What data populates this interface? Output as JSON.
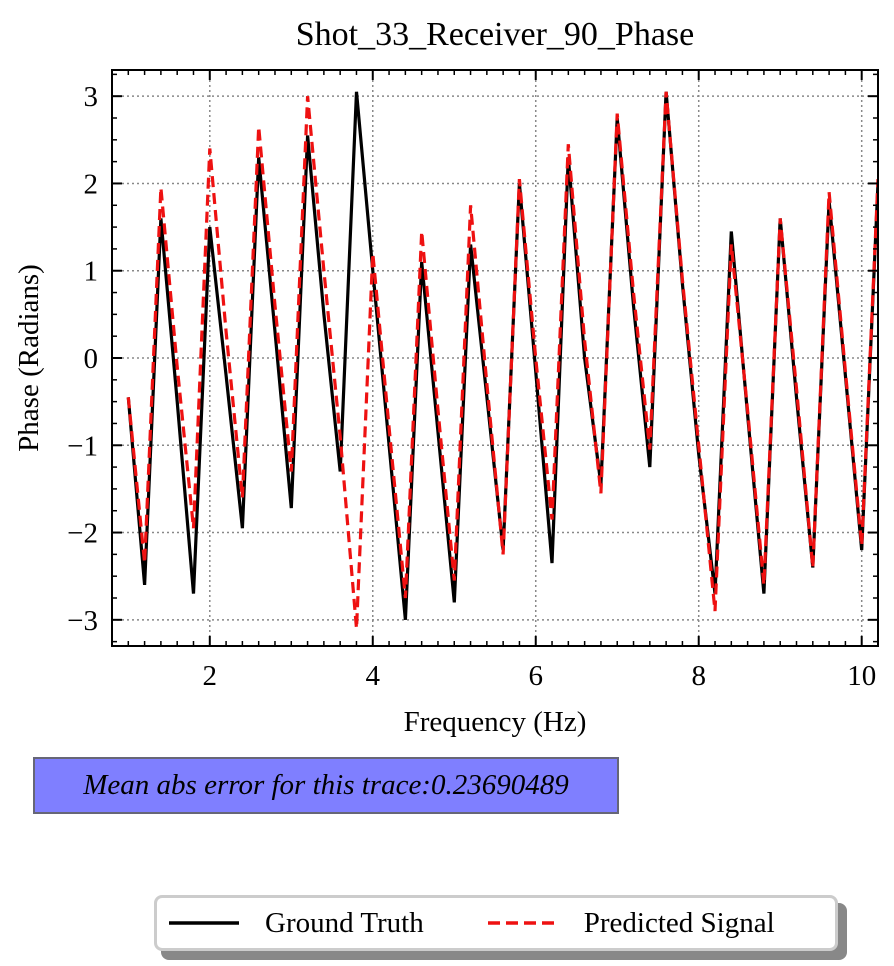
{
  "chart_data": {
    "type": "line",
    "title": "Shot_33_Receiver_90_Phase",
    "xlabel": "Frequency (Hz)",
    "ylabel": "Phase (Radians)",
    "xlim": [
      0.8,
      10.2
    ],
    "ylim": [
      -3.3,
      3.3
    ],
    "xticks": [
      2,
      4,
      6,
      8,
      10
    ],
    "yticks": [
      -3,
      -2,
      -1,
      0,
      1,
      2,
      3
    ],
    "ytick_labels": [
      "−3",
      "−2",
      "−1",
      "0",
      "1",
      "2",
      "3"
    ],
    "grid": true,
    "x": [
      1.0,
      1.2,
      1.4,
      1.6,
      1.8,
      2.0,
      2.2,
      2.4,
      2.6,
      2.8,
      3.0,
      3.2,
      3.4,
      3.6,
      3.8,
      4.0,
      4.2,
      4.4,
      4.6,
      4.8,
      5.0,
      5.2,
      5.4,
      5.6,
      5.8,
      6.0,
      6.2,
      6.4,
      6.6,
      6.8,
      7.0,
      7.2,
      7.4,
      7.6,
      7.8,
      8.0,
      8.2,
      8.4,
      8.6,
      8.8,
      9.0,
      9.2,
      9.4,
      9.6,
      9.8,
      10.0,
      10.2
    ],
    "series": [
      {
        "name": "Ground Truth",
        "color": "#000000",
        "dash": "solid",
        "values": [
          -0.45,
          -2.6,
          1.6,
          -0.5,
          -2.7,
          1.5,
          -0.2,
          -1.95,
          2.3,
          0.3,
          -1.72,
          2.55,
          0.5,
          -1.3,
          3.05,
          1.0,
          -1.0,
          -3.0,
          1.1,
          -0.85,
          -2.8,
          1.3,
          -0.45,
          -2.2,
          2.0,
          -0.15,
          -2.35,
          2.3,
          0.0,
          -1.45,
          2.75,
          0.6,
          -1.25,
          3.05,
          0.85,
          -1.1,
          -2.7,
          1.45,
          -0.65,
          -2.7,
          1.6,
          -0.45,
          -2.4,
          1.8,
          -0.2,
          -2.2,
          2.0
        ]
      },
      {
        "name": "Predicted Signal",
        "color": "#ee1111",
        "dash": "dashed",
        "values": [
          -0.45,
          -2.35,
          1.95,
          -0.1,
          -1.95,
          2.4,
          0.3,
          -1.6,
          2.65,
          0.6,
          -1.3,
          3.0,
          1.0,
          -0.9,
          -3.1,
          1.2,
          -0.8,
          -2.75,
          1.45,
          -0.6,
          -2.55,
          1.75,
          -0.3,
          -2.25,
          2.05,
          0.0,
          -1.85,
          2.45,
          0.2,
          -1.55,
          2.8,
          0.75,
          -1.05,
          3.05,
          0.9,
          -1.0,
          -2.9,
          1.3,
          -0.6,
          -2.6,
          1.6,
          -0.35,
          -2.4,
          1.9,
          -0.15,
          -2.15,
          2.05
        ]
      }
    ]
  },
  "annotation": {
    "text": "Mean abs error for this trace:0.23690489",
    "background": "#7f7fff"
  },
  "legend": {
    "placement": "bottom-center",
    "items": [
      {
        "label": "Ground Truth",
        "color": "#000000",
        "style": "solid"
      },
      {
        "label": "Predicted Signal",
        "color": "#ee1111",
        "style": "dashed"
      }
    ]
  }
}
